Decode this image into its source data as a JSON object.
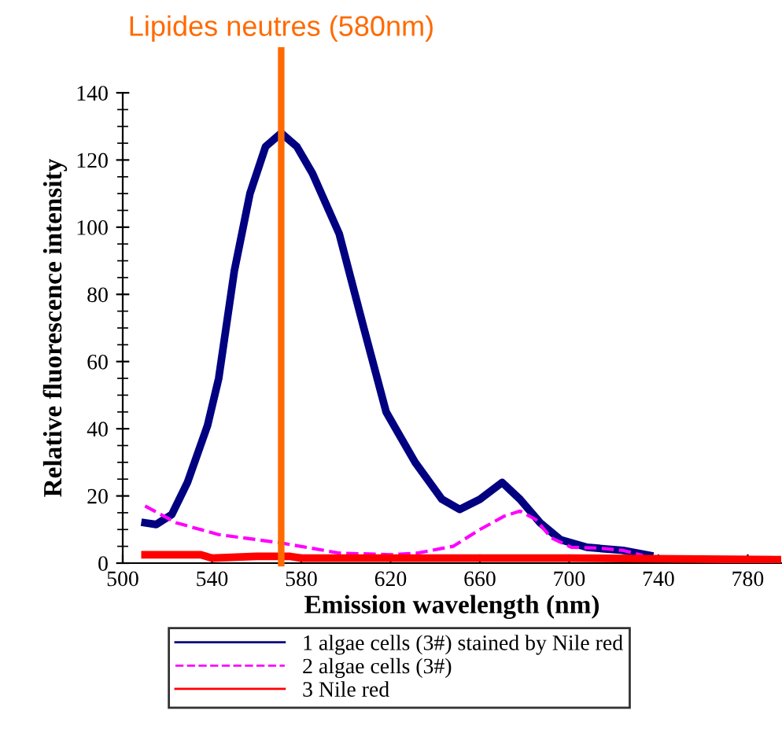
{
  "chart_data": {
    "type": "line",
    "xlabel": "Emission wavelength (nm)",
    "ylabel": "Relative fluorescence intensity",
    "xlim": [
      500,
      795
    ],
    "ylim": [
      0,
      140
    ],
    "xticks": [
      500,
      540,
      580,
      620,
      660,
      700,
      740,
      780
    ],
    "yticks": [
      0,
      20,
      40,
      60,
      80,
      100,
      120,
      140
    ],
    "grid": false,
    "legend": "bottom",
    "ref_lines": [
      {
        "axis": "x",
        "value": 571,
        "label": "Lipides neutres (580nm)",
        "color": "#ff6a00",
        "line_style": "solid"
      }
    ],
    "series": [
      {
        "name": "1 algae cells (3#) stained by Nile red",
        "color": "#000080",
        "line_style": "solid",
        "x": [
          510,
          515,
          522,
          529,
          538,
          543,
          550,
          557,
          564,
          571,
          578,
          585,
          597,
          608,
          618,
          631,
          643,
          651,
          660,
          670,
          678,
          687,
          696,
          708,
          724,
          736
        ],
        "values": [
          12,
          11.5,
          14.5,
          24,
          41,
          55,
          87,
          110,
          124,
          128,
          124,
          116,
          98,
          70,
          45,
          30,
          19,
          16,
          19,
          24,
          19,
          12,
          7,
          4.7,
          3.8,
          2.3
        ]
      },
      {
        "name": "2 algae cells (3#)",
        "color": "#ff00ff",
        "line_style": "dashed",
        "x": [
          510,
          524,
          543,
          571,
          597,
          620,
          632,
          648,
          660,
          671,
          678,
          685,
          692,
          701,
          713,
          724,
          733
        ],
        "values": [
          17,
          12,
          8.5,
          6,
          3,
          2.5,
          3,
          5,
          10,
          14,
          15.5,
          13,
          7.5,
          4.7,
          4.5,
          3.8,
          2.3
        ]
      },
      {
        "name": "3 Nile red",
        "color": "#ff0000",
        "line_style": "solid",
        "x": [
          510,
          535,
          540,
          560,
          575,
          580,
          620,
          700,
          795
        ],
        "values": [
          2.5,
          2.5,
          1.5,
          2,
          2,
          1.5,
          1.5,
          1.5,
          1
        ]
      }
    ]
  }
}
